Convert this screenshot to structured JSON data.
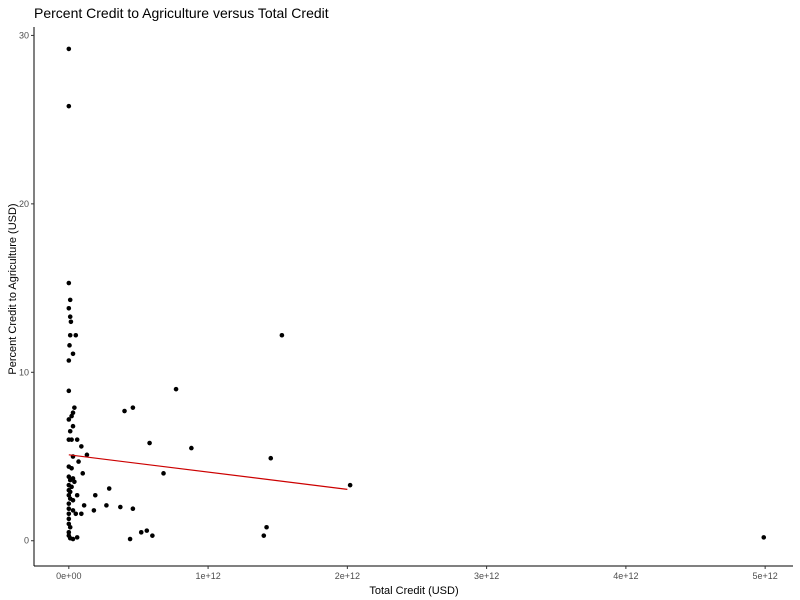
{
  "chart_data": {
    "type": "scatter",
    "title": "Percent Credit to Agriculture versus Total Credit",
    "xlabel": "Total Credit (USD)",
    "ylabel": "Percent Credit to Agriculture (USD)",
    "xlim": [
      -250000000000.0,
      5200000000000.0
    ],
    "ylim": [
      -1.5,
      30.5
    ],
    "x_ticks": [
      0,
      1000000000000.0,
      2000000000000.0,
      3000000000000.0,
      4000000000000.0,
      5000000000000.0
    ],
    "x_tick_labels": [
      "0e+00",
      "1e+12",
      "2e+12",
      "3e+12",
      "4e+12",
      "5e+12"
    ],
    "y_ticks": [
      0,
      10,
      20,
      30
    ],
    "y_tick_labels": [
      "0",
      "10",
      "20",
      "30"
    ],
    "grid": false,
    "point_color": "#000000",
    "trend_color": "#cc0000",
    "trend_line": {
      "x": [
        0,
        2000000000000.0
      ],
      "y": [
        5.1,
        3.05
      ]
    },
    "points": [
      {
        "x": 0.0,
        "y": 29.2
      },
      {
        "x": 0.0,
        "y": 25.8
      },
      {
        "x": 0.0,
        "y": 15.3
      },
      {
        "x": 10000000000.0,
        "y": 14.3
      },
      {
        "x": 0.0,
        "y": 13.8
      },
      {
        "x": 10000000000.0,
        "y": 13.3
      },
      {
        "x": 15000000000.0,
        "y": 13.0
      },
      {
        "x": 10000000000.0,
        "y": 12.2
      },
      {
        "x": 50000000000.0,
        "y": 12.2
      },
      {
        "x": 5000000000.0,
        "y": 11.6
      },
      {
        "x": 30000000000.0,
        "y": 11.1
      },
      {
        "x": 0.0,
        "y": 10.7
      },
      {
        "x": 0.0,
        "y": 8.9
      },
      {
        "x": 40000000000.0,
        "y": 7.9
      },
      {
        "x": 30000000000.0,
        "y": 7.6
      },
      {
        "x": 20000000000.0,
        "y": 7.4
      },
      {
        "x": 0.0,
        "y": 7.2
      },
      {
        "x": 30000000000.0,
        "y": 6.8
      },
      {
        "x": 10000000000.0,
        "y": 6.5
      },
      {
        "x": 0.0,
        "y": 6.0
      },
      {
        "x": 20000000000.0,
        "y": 6.0
      },
      {
        "x": 60000000000.0,
        "y": 6.0
      },
      {
        "x": 90000000000.0,
        "y": 5.6
      },
      {
        "x": 30000000000.0,
        "y": 5.0
      },
      {
        "x": 130000000000.0,
        "y": 5.1
      },
      {
        "x": 70000000000.0,
        "y": 4.7
      },
      {
        "x": 0.0,
        "y": 4.4
      },
      {
        "x": 20000000000.0,
        "y": 4.3
      },
      {
        "x": 100000000000.0,
        "y": 4.0
      },
      {
        "x": 0.0,
        "y": 3.8
      },
      {
        "x": 10000000000.0,
        "y": 3.6
      },
      {
        "x": 30000000000.0,
        "y": 3.7
      },
      {
        "x": 0.0,
        "y": 3.3
      },
      {
        "x": 40000000000.0,
        "y": 3.5
      },
      {
        "x": 20000000000.0,
        "y": 3.2
      },
      {
        "x": 0.0,
        "y": 3.0
      },
      {
        "x": 10000000000.0,
        "y": 2.9
      },
      {
        "x": 0.0,
        "y": 2.7
      },
      {
        "x": 60000000000.0,
        "y": 2.7
      },
      {
        "x": 10000000000.0,
        "y": 2.5
      },
      {
        "x": 30000000000.0,
        "y": 2.4
      },
      {
        "x": 0.0,
        "y": 2.2
      },
      {
        "x": 0.0,
        "y": 1.9
      },
      {
        "x": 30000000000.0,
        "y": 1.8
      },
      {
        "x": 110000000000.0,
        "y": 2.1
      },
      {
        "x": 0.0,
        "y": 1.6
      },
      {
        "x": 50000000000.0,
        "y": 1.6
      },
      {
        "x": 90000000000.0,
        "y": 1.6
      },
      {
        "x": 0.0,
        "y": 1.3
      },
      {
        "x": 0.0,
        "y": 1.0
      },
      {
        "x": 10000000000.0,
        "y": 0.8
      },
      {
        "x": 0.0,
        "y": 0.5
      },
      {
        "x": 0.0,
        "y": 0.3
      },
      {
        "x": 10000000000.0,
        "y": 0.15
      },
      {
        "x": 30000000000.0,
        "y": 0.1
      },
      {
        "x": 60000000000.0,
        "y": 0.2
      },
      {
        "x": 180000000000.0,
        "y": 1.8
      },
      {
        "x": 190000000000.0,
        "y": 2.7
      },
      {
        "x": 270000000000.0,
        "y": 2.1
      },
      {
        "x": 290000000000.0,
        "y": 3.1
      },
      {
        "x": 370000000000.0,
        "y": 2.0
      },
      {
        "x": 460000000000.0,
        "y": 1.9
      },
      {
        "x": 400000000000.0,
        "y": 7.7
      },
      {
        "x": 460000000000.0,
        "y": 7.9
      },
      {
        "x": 440000000000.0,
        "y": 0.1
      },
      {
        "x": 520000000000.0,
        "y": 0.5
      },
      {
        "x": 560000000000.0,
        "y": 0.6
      },
      {
        "x": 580000000000.0,
        "y": 5.8
      },
      {
        "x": 600000000000.0,
        "y": 0.3
      },
      {
        "x": 680000000000.0,
        "y": 4.0
      },
      {
        "x": 770000000000.0,
        "y": 9.0
      },
      {
        "x": 880000000000.0,
        "y": 5.5
      },
      {
        "x": 1400000000000.0,
        "y": 0.3
      },
      {
        "x": 1420000000000.0,
        "y": 0.8
      },
      {
        "x": 1450000000000.0,
        "y": 4.9
      },
      {
        "x": 1530000000000.0,
        "y": 12.2
      },
      {
        "x": 2020000000000.0,
        "y": 3.3
      },
      {
        "x": 4990000000000.0,
        "y": 0.2
      }
    ]
  }
}
